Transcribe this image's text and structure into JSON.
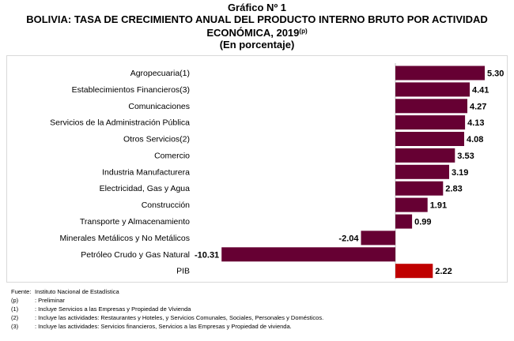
{
  "header": {
    "chart_number": "Gráfico Nº 1",
    "title_line1": "BOLIVIA: TASA DE CRECIMIENTO ANUAL DEL PRODUCTO INTERNO BRUTO POR ACTIVIDAD",
    "title_line2": "ECONÓMICA, 2019",
    "title_sup": "(p)",
    "subtitle": "(En porcentaje)"
  },
  "colors": {
    "bar": "#660033",
    "pib": "#c00000",
    "axis": "#bfbfbf"
  },
  "chart_data": {
    "type": "bar",
    "orientation": "horizontal",
    "title": "BOLIVIA: TASA DE CRECIMIENTO ANUAL DEL PRODUCTO INTERNO BRUTO POR ACTIVIDAD ECONÓMICA, 2019(p)",
    "subtitle": "(En porcentaje)",
    "categories": [
      "Agropecuaria(1)",
      "Establecimientos Financieros(3)",
      "Comunicaciones",
      "Servicios de la Administración Pública",
      "Otros Servicios(2)",
      "Comercio",
      "Industria Manufacturera",
      "Electricidad, Gas y Agua",
      "Construcción",
      "Transporte y Almacenamiento",
      "Minerales Metálicos y No Metálicos",
      "Petróleo Crudo y Gas Natural",
      "PIB"
    ],
    "values": [
      5.3,
      4.41,
      4.27,
      4.13,
      4.08,
      3.53,
      3.19,
      2.83,
      1.91,
      0.99,
      -2.04,
      -10.31,
      2.22
    ],
    "labels": [
      "5.30",
      "4.41",
      "4.27",
      "4.13",
      "4.08",
      "3.53",
      "3.19",
      "2.83",
      "1.91",
      "0.99",
      "-2.04",
      "-10.31",
      "2.22"
    ],
    "highlight_index": 12,
    "xlim": [
      -10.31,
      5.3
    ],
    "xlabel": "",
    "ylabel": "",
    "grid": false
  },
  "footnotes": [
    {
      "key": "Fuente:",
      "text": "Instituto Nacional de Estadística"
    },
    {
      "key": "(p)",
      "text": ": Preliminar"
    },
    {
      "key": "(1)",
      "text": ": Incluye Servicios a las Empresas y Propiedad de Vivienda"
    },
    {
      "key": "(2)",
      "text": ": Incluye las actividades: Restaurantes y Hoteles, y Servicios Comunales, Sociales, Personales y Domésticos."
    },
    {
      "key": "(3)",
      "text": ": Incluye las actividades: Servicios financieros, Servicios a las Empresas y Propiedad de vivienda."
    }
  ]
}
